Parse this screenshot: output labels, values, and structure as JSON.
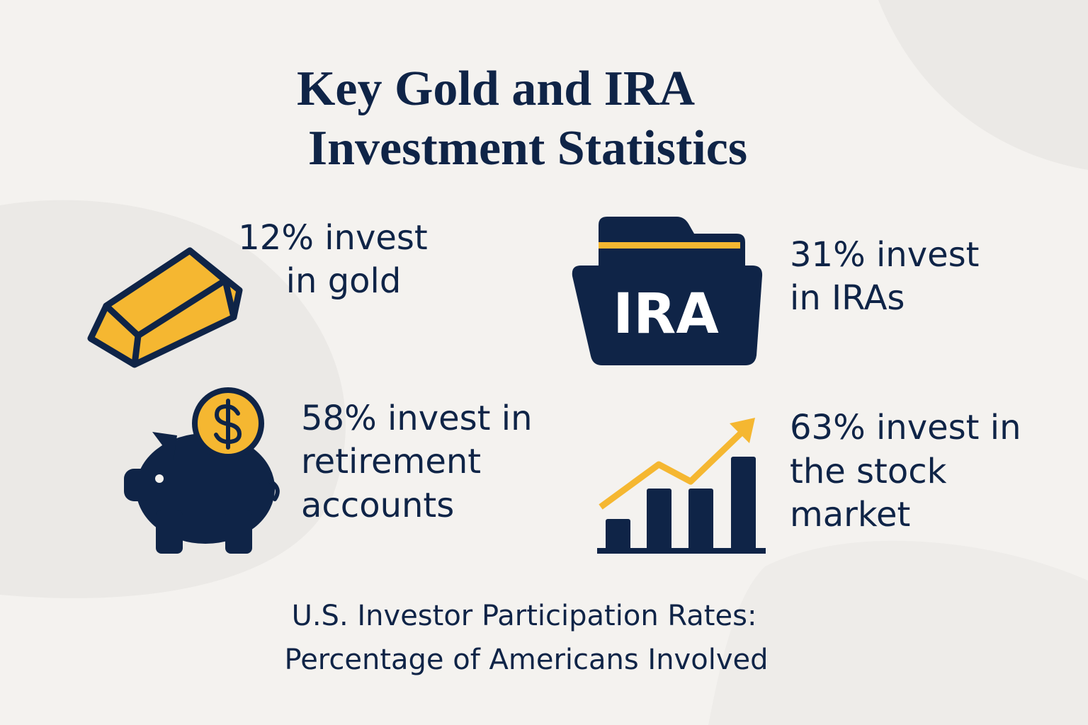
{
  "title": [
    "Key Gold and IRA",
    "Investment Statistics"
  ],
  "stats": [
    {
      "lines": [
        "12% invest",
        "in gold"
      ]
    },
    {
      "icon_text": "IRA",
      "lines": [
        "31% invest",
        "in IRAs"
      ]
    },
    {
      "lines": [
        "58% invest in",
        "retirement",
        "accounts"
      ]
    },
    {
      "lines": [
        "63% invest in",
        "the stock",
        "market"
      ]
    }
  ],
  "subtitle": [
    "U.S. Investor Participation Rates:",
    "Percentage of Americans Involved"
  ]
}
